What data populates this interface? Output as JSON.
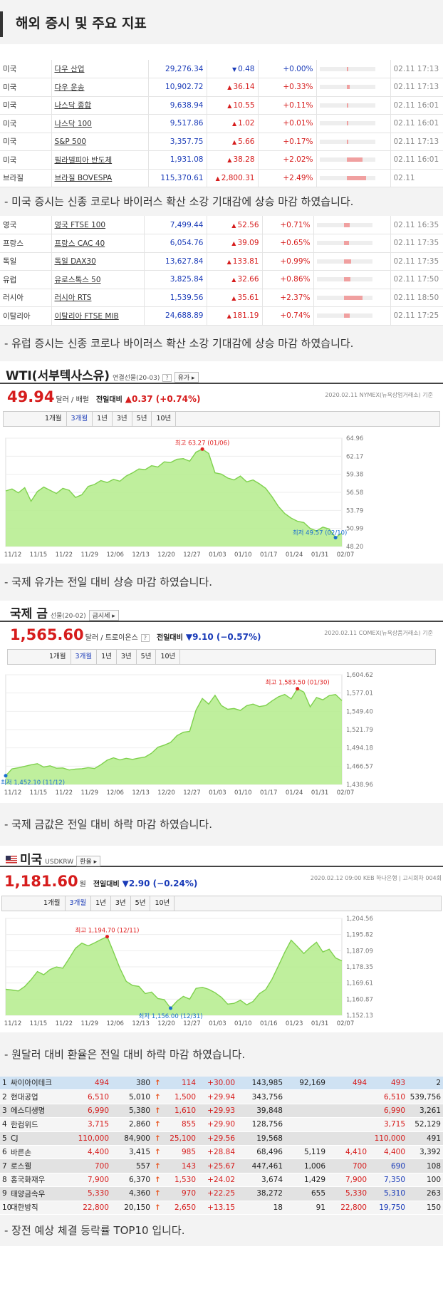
{
  "header": {
    "title": "해외 증시 및 주요 지표"
  },
  "us_indices": [
    {
      "country": "미국",
      "name": "다우 산업",
      "value": "29,276.34",
      "dir": "down",
      "change": "0.48",
      "rate": "+0.00%",
      "bar": 0.03,
      "time": "02.11 17:13"
    },
    {
      "country": "미국",
      "name": "다우 운송",
      "value": "10,902.72",
      "dir": "up",
      "change": "36.14",
      "rate": "+0.33%",
      "bar": 0.12,
      "time": "02.11 17:13"
    },
    {
      "country": "미국",
      "name": "나스닥 종합",
      "value": "9,638.94",
      "dir": "up",
      "change": "10.55",
      "rate": "+0.11%",
      "bar": 0.06,
      "time": "02.11 16:01"
    },
    {
      "country": "미국",
      "name": "나스닥 100",
      "value": "9,517.86",
      "dir": "up",
      "change": "1.02",
      "rate": "+0.01%",
      "bar": 0.03,
      "time": "02.11 16:01"
    },
    {
      "country": "미국",
      "name": "S&P 500",
      "value": "3,357.75",
      "dir": "up",
      "change": "5.66",
      "rate": "+0.17%",
      "bar": 0.07,
      "time": "02.11 17:13"
    },
    {
      "country": "미국",
      "name": "필라델피아 반도체",
      "value": "1,931.08",
      "dir": "up",
      "change": "38.28",
      "rate": "+2.02%",
      "bar": 0.55,
      "time": "02.11 16:01"
    },
    {
      "country": "브라질",
      "name": "브라질 BOVESPA",
      "value": "115,370.61",
      "dir": "up",
      "change": "2,800.31",
      "rate": "+2.49%",
      "bar": 0.68,
      "time": "02.11"
    }
  ],
  "us_caption": "- 미국 증시는 신종 코로나 바이러스 확산 소강 기대감에 상승 마감 하였습니다.",
  "eu_indices": [
    {
      "country": "영국",
      "name": "영국 FTSE 100",
      "value": "7,499.44",
      "dir": "up",
      "change": "52.56",
      "rate": "+0.71%",
      "bar": 0.2,
      "time": "02.11 16:35"
    },
    {
      "country": "프랑스",
      "name": "프랑스 CAC 40",
      "value": "6,054.76",
      "dir": "up",
      "change": "39.09",
      "rate": "+0.65%",
      "bar": 0.18,
      "time": "02.11 17:35"
    },
    {
      "country": "독일",
      "name": "독일 DAX30",
      "value": "13,627.84",
      "dir": "up",
      "change": "133.81",
      "rate": "+0.99%",
      "bar": 0.27,
      "time": "02.11 17:35"
    },
    {
      "country": "유럽",
      "name": "유로스톡스 50",
      "value": "3,825.84",
      "dir": "up",
      "change": "32.66",
      "rate": "+0.86%",
      "bar": 0.24,
      "time": "02.11 17:50"
    },
    {
      "country": "러시아",
      "name": "러시아 RTS",
      "value": "1,539.56",
      "dir": "up",
      "change": "35.61",
      "rate": "+2.37%",
      "bar": 0.65,
      "time": "02.11 18:50"
    },
    {
      "country": "이탈리아",
      "name": "이탈리아 FTSE MIB",
      "value": "24,688.89",
      "dir": "up",
      "change": "181.19",
      "rate": "+0.74%",
      "bar": 0.21,
      "time": "02.11 17:25"
    }
  ],
  "eu_caption": "- 유럽 증시는 신종 코로나 바이러스 확산 소강 기대감에 상승 마감 하였습니다.",
  "periods": [
    "1개월",
    "3개월",
    "1년",
    "3년",
    "5년",
    "10년"
  ],
  "wti": {
    "title": "WTI(서부텍사스유)",
    "sub": "연결선물(20-03)",
    "help": "?",
    "btn": "유가",
    "price": "49.94",
    "unit": "달러 / 배럴",
    "label": "전일대비",
    "delta": "▲0.37 (+0.74%)",
    "source": "2020.02.11 NYMEX(뉴욕상업거래소) 기준",
    "max_label": "최고 63.27 (01/06)",
    "min_label": "최저 49.57 (02/10)",
    "caption": "- 국제 유가는 전일 대비 상승 마감 하였습니다."
  },
  "gold": {
    "title": "국제 금",
    "sub": "선물(20-02)",
    "btn": "금시세",
    "help": "?",
    "price": "1,565.60",
    "unit": "달러 / 트로이온스",
    "label": "전일대비",
    "delta": "▼9.10 (−0.57%)",
    "source": "2020.02.11 COMEX(뉴욕상품거래소) 기준",
    "max_label": "최고 1,583.50 (01/30)",
    "min_label": "최저 1,452.10 (11/12)",
    "caption": "- 국제 금값은 전일 대비 하락 마감 하였습니다."
  },
  "fx": {
    "title": "미국",
    "sub": "USDKRW",
    "btn": "환율",
    "price": "1,181.60",
    "unit": "원",
    "label": "전일대비",
    "delta": "▼2.90 (−0.24%)",
    "source": "2020.02.12 09:00  KEB 하나은행  |  고시회차 004회",
    "max_label": "최고 1,194.70 (12/11)",
    "min_label": "최저 1,156.00 (12/31)",
    "caption": "- 원달러 대비 환율은 전일 대비 하락 마감 하였습니다."
  },
  "chart_data": [
    {
      "type": "area",
      "title": "WTI(서부텍사스유)",
      "x_ticks": [
        "11/12",
        "11/15",
        "11/22",
        "11/29",
        "12/06",
        "12/13",
        "12/20",
        "12/27",
        "01/03",
        "01/10",
        "01/17",
        "01/24",
        "01/31",
        "02/07"
      ],
      "y_ticks": [
        "64.96",
        "62.17",
        "59.38",
        "56.58",
        "53.79",
        "50.99",
        "48.20"
      ],
      "ylim": [
        48.2,
        64.96
      ],
      "values": [
        56.8,
        57.1,
        56.5,
        57.3,
        55.2,
        56.7,
        57.4,
        56.9,
        56.4,
        57.2,
        56.9,
        55.8,
        56.2,
        57.5,
        57.8,
        58.4,
        58.1,
        58.6,
        58.3,
        59.1,
        59.6,
        60.2,
        60.1,
        60.7,
        60.5,
        61.3,
        61.2,
        61.7,
        61.8,
        61.4,
        62.8,
        63.27,
        62.6,
        59.6,
        59.4,
        58.8,
        58.5,
        59.1,
        58.2,
        58.5,
        57.9,
        57.2,
        55.9,
        54.4,
        53.3,
        52.6,
        52.1,
        51.9,
        51.0,
        50.6,
        51.2,
        50.9,
        49.57,
        50.3
      ]
    },
    {
      "type": "area",
      "title": "국제 금",
      "x_ticks": [
        "11/12",
        "11/15",
        "11/22",
        "11/29",
        "12/06",
        "12/13",
        "12/20",
        "12/27",
        "01/03",
        "01/10",
        "01/17",
        "01/24",
        "01/31",
        "02/07"
      ],
      "y_ticks": [
        "1,604.62",
        "1,577.01",
        "1,549.40",
        "1,521.79",
        "1,494.18",
        "1,466.57",
        "1,438.96"
      ],
      "ylim": [
        1438.96,
        1604.62
      ],
      "values": [
        1452.1,
        1462.5,
        1464.1,
        1466.3,
        1468.7,
        1470.4,
        1465.2,
        1467.1,
        1463.5,
        1463.9,
        1460.8,
        1462.2,
        1462.7,
        1464.3,
        1463.1,
        1468.8,
        1475.6,
        1479.2,
        1476.1,
        1478.4,
        1476.8,
        1478.9,
        1480.5,
        1486.2,
        1495.1,
        1498.3,
        1502.4,
        1512.6,
        1517.8,
        1519.1,
        1551.2,
        1568.7,
        1560.3,
        1573.5,
        1558.1,
        1552.4,
        1553.6,
        1550.7,
        1557.9,
        1560.3,
        1556.5,
        1558.2,
        1565.1,
        1571.3,
        1574.8,
        1568.2,
        1583.5,
        1578.4,
        1556.1,
        1570.2,
        1566.8,
        1573.1,
        1574.7,
        1565.6
      ]
    },
    {
      "type": "area",
      "title": "미국 USDKRW",
      "x_ticks": [
        "11/12",
        "11/15",
        "11/22",
        "11/29",
        "12/06",
        "12/13",
        "12/20",
        "12/27",
        "01/03",
        "01/10",
        "01/16",
        "01/23",
        "01/31",
        "02/07"
      ],
      "y_ticks": [
        "1,204.56",
        "1,195.82",
        "1,187.09",
        "1,178.35",
        "1,169.61",
        "1,160.87",
        "1,152.13"
      ],
      "ylim": [
        1152.13,
        1204.56
      ],
      "values": [
        1166.2,
        1165.8,
        1165.3,
        1167.7,
        1171.4,
        1175.8,
        1174.1,
        1176.9,
        1178.3,
        1177.6,
        1182.9,
        1188.4,
        1191.2,
        1189.7,
        1191.3,
        1193.1,
        1194.7,
        1186.3,
        1177.6,
        1170.5,
        1168.3,
        1167.8,
        1163.9,
        1164.7,
        1161.2,
        1160.6,
        1156.0,
        1159.8,
        1162.4,
        1160.9,
        1166.7,
        1167.3,
        1166.2,
        1164.4,
        1161.9,
        1158.2,
        1158.6,
        1160.3,
        1157.8,
        1159.6,
        1163.8,
        1166.1,
        1171.7,
        1178.9,
        1186.2,
        1192.8,
        1189.3,
        1185.6,
        1188.9,
        1191.7,
        1186.4,
        1187.9,
        1183.2,
        1181.6
      ]
    }
  ],
  "top10": {
    "rows": [
      [
        "1",
        "싸이아이테크",
        "494",
        "380",
        "114",
        "+30.00",
        "143,985",
        "92,169",
        "494",
        "493",
        "2"
      ],
      [
        "2",
        "현대공업",
        "6,510",
        "5,010",
        "1,500",
        "+29.94",
        "343,756",
        "",
        "",
        "6,510",
        "539,756"
      ],
      [
        "3",
        "에스디생명",
        "6,990",
        "5,380",
        "1,610",
        "+29.93",
        "39,848",
        "",
        "",
        "6,990",
        "3,261"
      ],
      [
        "4",
        "한컴위드",
        "3,715",
        "2,860",
        "855",
        "+29.90",
        "128,756",
        "",
        "",
        "3,715",
        "52,129"
      ],
      [
        "5",
        "CJ",
        "110,000",
        "84,900",
        "25,100",
        "+29.56",
        "19,568",
        "",
        "",
        "110,000",
        "491"
      ],
      [
        "6",
        "바른손",
        "4,400",
        "3,415",
        "985",
        "+28.84",
        "68,496",
        "5,119",
        "4,410",
        "4,400",
        "3,392"
      ],
      [
        "7",
        "로스웰",
        "700",
        "557",
        "143",
        "+25.67",
        "447,461",
        "1,006",
        "700",
        "690",
        "108"
      ],
      [
        "8",
        "홍국화재우",
        "7,900",
        "6,370",
        "1,530",
        "+24.02",
        "3,674",
        "1,429",
        "7,900",
        "7,350",
        "100"
      ],
      [
        "9",
        "태양금속우",
        "5,330",
        "4,360",
        "970",
        "+22.25",
        "38,272",
        "655",
        "5,330",
        "5,310",
        "263"
      ],
      [
        "10",
        "대한방직",
        "22,800",
        "20,150",
        "2,650",
        "+13.15",
        "18",
        "91",
        "22,800",
        "19,750",
        "150"
      ]
    ],
    "caption": "- 장전 예상 체결 등락률 TOP10 입니다."
  },
  "colors": {
    "up": "#d61c1c",
    "down": "#1a3bb8",
    "chart_fill": "#b4ec8c",
    "chart_line": "#7fd14e"
  }
}
